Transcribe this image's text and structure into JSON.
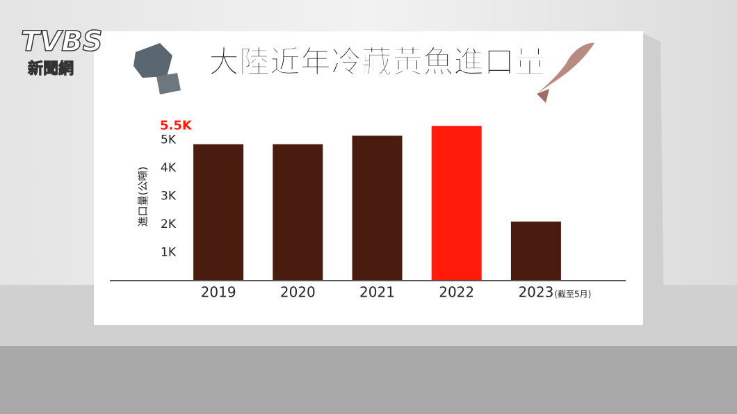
{
  "watermark": {
    "logo": "TVBS",
    "sub": "新聞網"
  },
  "chart_data": {
    "type": "bar",
    "title": "大陸近年冷藏黃魚進口量",
    "y_label": "進口量(公噸)",
    "categories": [
      "2019",
      "2020",
      "2021",
      "2022",
      "2023"
    ],
    "x_note": "(截至5月)",
    "series": [
      {
        "values": [
          4850,
          4850,
          5150,
          5500,
          2100
        ],
        "value_labels": [
          null,
          null,
          null,
          "5.5K",
          null
        ],
        "colors": [
          "#4a1c10",
          "#4a1c10",
          "#4a1c10",
          "#ff1a0a",
          "#4a1c10"
        ]
      }
    ],
    "ylim": [
      0,
      6000
    ],
    "yticks": [
      {
        "value": 1000,
        "label": "1K"
      },
      {
        "value": 2000,
        "label": "2K"
      },
      {
        "value": 3000,
        "label": "3K"
      },
      {
        "value": 4000,
        "label": "4K"
      },
      {
        "value": 5000,
        "label": "5K"
      }
    ],
    "grid": false
  }
}
